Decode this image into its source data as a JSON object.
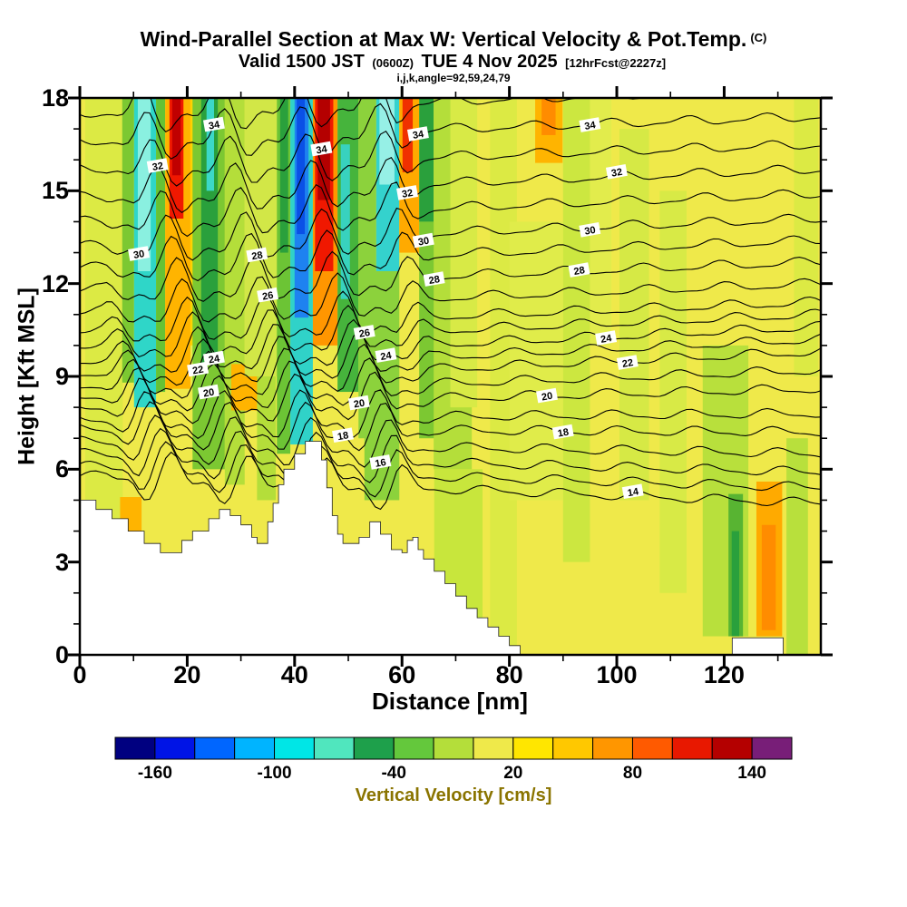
{
  "header": {
    "title_main": "Wind-Parallel Section at Max W: Vertical Velocity & Pot.Temp.",
    "title_unit": "(C)",
    "subtitle_pre": "Valid 1500 JST",
    "subtitle_small1": "(0600Z)",
    "subtitle_mid": "TUE 4 Nov 2025",
    "subtitle_small2": "[12hrFcst@2227z]",
    "subtitle_info": "i,j,k,angle=92,59,24,79"
  },
  "axes": {
    "x_label": "Distance [nm]",
    "y_label": "Height [Kft MSL]",
    "x_ticks": [
      0,
      20,
      40,
      60,
      80,
      100,
      120
    ],
    "y_ticks": [
      0,
      3,
      6,
      9,
      12,
      15,
      18
    ],
    "x_range": [
      0,
      138
    ],
    "y_range": [
      0,
      18
    ],
    "x_minor_step": 10,
    "y_minor_step": 1
  },
  "colorbar": {
    "label": "Vertical Velocity [cm/s]",
    "label_color": "#8a7400",
    "min": -180,
    "max": 160,
    "step": 20,
    "tick_values": [
      -160,
      -100,
      -40,
      20,
      80,
      140
    ],
    "colors": [
      "#000080",
      "#0014e6",
      "#0066ff",
      "#00b4ff",
      "#00e6e6",
      "#50e6be",
      "#1ea04b",
      "#64c83c",
      "#b4de3a",
      "#efe94a",
      "#ffe600",
      "#ffc800",
      "#ff9600",
      "#ff5a00",
      "#e81800",
      "#b40000",
      "#781e78"
    ]
  },
  "chart_data": {
    "type": "heatmap",
    "subtype": "filled-contour-vertical-cross-section",
    "title": "Wind-Parallel Section at Max W: Vertical Velocity & Pot.Temp. (C)",
    "xlabel": "Distance [nm]",
    "ylabel": "Height [Kft MSL]",
    "xlim": [
      0,
      138
    ],
    "ylim": [
      0,
      18
    ],
    "fill_field": {
      "variable": "Vertical Velocity [cm/s]",
      "base_value_color": "#efe94a",
      "stripes": [
        [
          1,
          8,
          18,
          0,
          "#dcea44"
        ],
        [
          7.9,
          10.1,
          18,
          8.8,
          "#7cc832"
        ],
        [
          10.1,
          14.2,
          18,
          8,
          "#2fd6c8"
        ],
        [
          10.8,
          13.2,
          18,
          12.4,
          "#8af0e0"
        ],
        [
          14.2,
          15.9,
          18,
          8.5,
          "#66c235"
        ],
        [
          15.9,
          20.6,
          18,
          8.6,
          "#ffb400"
        ],
        [
          16.7,
          19.3,
          18,
          14.1,
          "#f01800"
        ],
        [
          17.2,
          18.8,
          18,
          15.5,
          "#c00000"
        ],
        [
          20.6,
          21.8,
          18,
          10,
          "#ffd200"
        ],
        [
          21,
          27,
          18,
          6,
          "#7cc832"
        ],
        [
          22.6,
          25.7,
          18,
          9.4,
          "#2aa03c"
        ],
        [
          23.6,
          25,
          18,
          15,
          "#3cd8c8"
        ],
        [
          27,
          30.7,
          18,
          5.5,
          "#b4de3a"
        ],
        [
          28.2,
          33.3,
          9.4,
          7.9,
          "#ffb400"
        ],
        [
          7.5,
          11.5,
          5.1,
          3.7,
          "#ffb400"
        ],
        [
          30.7,
          36.7,
          18,
          9,
          "#d2e747"
        ],
        [
          33,
          36.5,
          9,
          5,
          "#b4de3a"
        ],
        [
          36.7,
          39.2,
          18,
          6.5,
          "#6cc435"
        ],
        [
          37.3,
          38.8,
          18,
          13,
          "#2aa03c"
        ],
        [
          39.2,
          43.4,
          18,
          6.8,
          "#30d2c8"
        ],
        [
          40,
          42.6,
          18,
          10.9,
          "#1e82f0"
        ],
        [
          40.4,
          41.9,
          18,
          13.6,
          "#0a50e6"
        ],
        [
          43.4,
          48,
          18,
          10,
          "#ff9600"
        ],
        [
          43.8,
          47.2,
          18,
          12.4,
          "#f01800"
        ],
        [
          44.3,
          46.6,
          18,
          14.7,
          "#b40000"
        ],
        [
          48,
          51.9,
          18,
          8.5,
          "#46b43c"
        ],
        [
          48.6,
          50.3,
          16.5,
          11.5,
          "#38d2be"
        ],
        [
          51.9,
          55.2,
          18,
          7,
          "#8cd23c"
        ],
        [
          55.2,
          59.5,
          18,
          12.4,
          "#34d2cd"
        ],
        [
          55.8,
          58.6,
          18,
          15.2,
          "#96f0e6"
        ],
        [
          53,
          59.5,
          12.4,
          5,
          "#8cd23c"
        ],
        [
          59.5,
          63.2,
          18,
          13,
          "#ffaa00"
        ],
        [
          60.1,
          62,
          18,
          15.6,
          "#f03000"
        ],
        [
          63.2,
          65.9,
          18,
          14,
          "#2aa03c"
        ],
        [
          63.2,
          66.5,
          14,
          7,
          "#7cc832"
        ],
        [
          65.9,
          73,
          18,
          6,
          "#b4de3a"
        ],
        [
          66,
          75,
          6,
          0,
          "#c8e63c"
        ],
        [
          69,
          74,
          18,
          8,
          "#d8ea46"
        ],
        [
          76.4,
          81.4,
          18,
          0,
          "#dcea44"
        ],
        [
          84.8,
          89.9,
          18,
          15.9,
          "#ffb400"
        ],
        [
          86,
          88.6,
          18,
          16.8,
          "#ff8c00"
        ],
        [
          80,
          90,
          14,
          5,
          "#e0ec4a"
        ],
        [
          90,
          95,
          18,
          3,
          "#cce740"
        ],
        [
          95,
          99,
          18,
          10,
          "#e2ec4c"
        ],
        [
          100.5,
          106,
          17,
          5,
          "#d6e945"
        ],
        [
          108,
          113,
          15,
          2,
          "#d8ea46"
        ],
        [
          116,
          124.5,
          10,
          0.6,
          "#b8e03c"
        ],
        [
          120.8,
          123.5,
          5.2,
          0.6,
          "#58b432"
        ],
        [
          121.4,
          122.8,
          4,
          0.6,
          "#2aa03c"
        ],
        [
          126,
          130.8,
          5.6,
          0.6,
          "#ffaa00"
        ],
        [
          127,
          129.6,
          4.2,
          0.8,
          "#ff8c00"
        ],
        [
          131.6,
          135.6,
          7,
          0,
          "#b8e03c"
        ],
        [
          133,
          137.5,
          18,
          9,
          "#dcea44"
        ]
      ]
    },
    "contour_field": {
      "variable": "Potential Temperature (C)",
      "levels": [
        {
          "v": 14,
          "hL": 5.8,
          "hR": 4.9
        },
        {
          "v": 15,
          "hL": 6.1,
          "hR": 5.4
        },
        {
          "v": 16,
          "hL": 6.5,
          "hR": 5.9
        },
        {
          "v": 17,
          "hL": 6.9,
          "hR": 6.5
        },
        {
          "v": 18,
          "hL": 7.3,
          "hR": 7.2
        },
        {
          "v": 19,
          "hL": 7.6,
          "hR": 7.8
        },
        {
          "v": 20,
          "hL": 8.0,
          "hR": 8.6
        },
        {
          "v": 21,
          "hL": 8.35,
          "hR": 9.2
        },
        {
          "v": 22,
          "hL": 8.7,
          "hR": 9.8
        },
        {
          "v": 23,
          "hL": 9.1,
          "hR": 10.2
        },
        {
          "v": 24,
          "hL": 9.5,
          "hR": 10.6
        },
        {
          "v": 25,
          "hL": 10.0,
          "hR": 11.0
        },
        {
          "v": 26,
          "hL": 10.5,
          "hR": 11.4
        },
        {
          "v": 27,
          "hL": 11.1,
          "hR": 12.0
        },
        {
          "v": 28,
          "hL": 11.8,
          "hR": 12.7
        },
        {
          "v": 29,
          "hL": 12.5,
          "hR": 13.4
        },
        {
          "v": 30,
          "hL": 13.2,
          "hR": 14.1
        },
        {
          "v": 31,
          "hL": 14.0,
          "hR": 14.9
        },
        {
          "v": 32,
          "hL": 14.8,
          "hR": 15.7
        },
        {
          "v": 33,
          "hL": 15.7,
          "hR": 16.5
        },
        {
          "v": 34,
          "hL": 16.6,
          "hR": 17.4
        },
        {
          "v": 35,
          "hL": 17.5,
          "hR": 18.3
        }
      ],
      "label_positions": [
        {
          "v": 14,
          "x": [
            103
          ]
        },
        {
          "v": 16,
          "x": [
            56
          ]
        },
        {
          "v": 18,
          "x": [
            49,
            90
          ]
        },
        {
          "v": 20,
          "x": [
            24,
            52,
            87
          ]
        },
        {
          "v": 22,
          "x": [
            22,
            102
          ]
        },
        {
          "v": 24,
          "x": [
            25,
            57,
            98
          ]
        },
        {
          "v": 26,
          "x": [
            35,
            53
          ]
        },
        {
          "v": 28,
          "x": [
            33,
            66,
            93
          ]
        },
        {
          "v": 30,
          "x": [
            11,
            64,
            95
          ]
        },
        {
          "v": 32,
          "x": [
            14.5,
            61,
            100
          ]
        },
        {
          "v": 34,
          "x": [
            25,
            45,
            63,
            95
          ]
        }
      ]
    },
    "terrain_profile_kft": [
      [
        0,
        5.0
      ],
      [
        3,
        4.7
      ],
      [
        6,
        4.4
      ],
      [
        9,
        4.0
      ],
      [
        12,
        3.6
      ],
      [
        15,
        3.3
      ],
      [
        18,
        3.3
      ],
      [
        19,
        3.7
      ],
      [
        21,
        4.0
      ],
      [
        24,
        4.4
      ],
      [
        26,
        4.7
      ],
      [
        28,
        4.5
      ],
      [
        30,
        4.2
      ],
      [
        32,
        3.8
      ],
      [
        33,
        3.6
      ],
      [
        35,
        4.3
      ],
      [
        36,
        4.9
      ],
      [
        37,
        5.5
      ],
      [
        38,
        6.0
      ],
      [
        40,
        6.5
      ],
      [
        42,
        6.9
      ],
      [
        44,
        6.9
      ],
      [
        45,
        6.3
      ],
      [
        46,
        5.4
      ],
      [
        47,
        4.5
      ],
      [
        48,
        3.9
      ],
      [
        49,
        3.6
      ],
      [
        52,
        3.8
      ],
      [
        54,
        4.3
      ],
      [
        56,
        3.9
      ],
      [
        58,
        3.4
      ],
      [
        60,
        3.3
      ],
      [
        61,
        3.7
      ],
      [
        62,
        3.8
      ],
      [
        63,
        3.4
      ],
      [
        64,
        3.1
      ],
      [
        66,
        2.7
      ],
      [
        68,
        2.3
      ],
      [
        70,
        1.9
      ],
      [
        72,
        1.5
      ],
      [
        74,
        1.2
      ],
      [
        76,
        0.9
      ],
      [
        78,
        0.6
      ],
      [
        80,
        0.3
      ],
      [
        82,
        0
      ]
    ],
    "terrain_gap_rect": [
      121.5,
      131,
      0,
      0.55
    ]
  }
}
